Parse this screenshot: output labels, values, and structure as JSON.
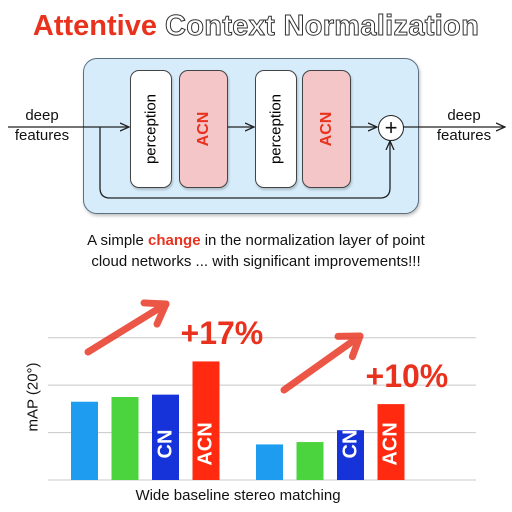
{
  "title": {
    "part1": "Attentive",
    "part2": "Context Normalization"
  },
  "diagram": {
    "input_label": "deep\nfeatures",
    "output_label": "deep\nfeatures",
    "block1_label": "perception",
    "block2_label": "ACN",
    "block3_label": "perception",
    "block4_label": "ACN",
    "sum_symbol": "+"
  },
  "caption": {
    "before": "A simple ",
    "highlight": "change",
    "after1": " in the normalization layer of point",
    "line2": "cloud networks ... with significant improvements!!!"
  },
  "colors": {
    "accent_red": "#e8321e",
    "bar_blue_light": "#1e9cf0",
    "bar_green": "#4cd43e",
    "bar_blue_dark": "#1533d9",
    "bar_red": "#ff2a10",
    "module_bg": "#d6ecfa"
  },
  "chart_data": {
    "type": "bar",
    "xlabel": "Wide baseline stereo matching",
    "ylabel": "mAP (20°)",
    "ylim": [
      0,
      7
    ],
    "grid": true,
    "groups": [
      {
        "bars": [
          {
            "label": "",
            "value": 3.3,
            "color": "#1e9cf0"
          },
          {
            "label": "",
            "value": 3.5,
            "color": "#4cd43e"
          },
          {
            "label": "CN",
            "value": 3.6,
            "color": "#1533d9"
          },
          {
            "label": "ACN",
            "value": 5.0,
            "color": "#ff2a10"
          }
        ],
        "gain": "+17%"
      },
      {
        "bars": [
          {
            "label": "",
            "value": 1.5,
            "color": "#1e9cf0"
          },
          {
            "label": "",
            "value": 1.6,
            "color": "#4cd43e"
          },
          {
            "label": "CN",
            "value": 2.1,
            "color": "#1533d9"
          },
          {
            "label": "ACN",
            "value": 3.2,
            "color": "#ff2a10"
          }
        ],
        "gain": "+10%"
      }
    ]
  }
}
